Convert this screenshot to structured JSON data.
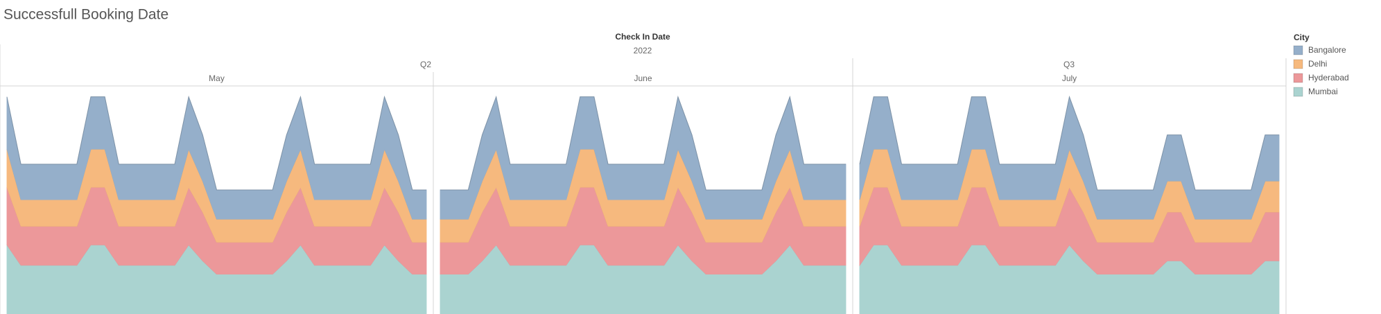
{
  "title": "Successfull Booking Date",
  "header": {
    "field": "Check In Date",
    "year": "2022",
    "quarters": [
      "Q2",
      "Q3"
    ]
  },
  "legend_title": "City",
  "chart_data": [
    {
      "type": "area",
      "stacked": true,
      "panel": "May",
      "series": [
        {
          "name": "Bangalore",
          "color": "#95afca",
          "values": [
            59,
            40,
            40,
            40,
            40,
            40,
            59,
            59,
            40,
            40,
            40,
            40,
            40,
            59,
            52,
            33,
            33,
            33,
            33,
            33,
            52,
            59,
            40,
            40,
            40,
            40,
            40,
            59,
            52,
            33,
            33
          ]
        },
        {
          "name": "Delhi",
          "color": "#f6b97e",
          "values": [
            43,
            30,
            30,
            30,
            30,
            30,
            43,
            43,
            30,
            30,
            30,
            30,
            30,
            43,
            35,
            26,
            26,
            26,
            26,
            26,
            35,
            43,
            30,
            30,
            30,
            30,
            30,
            43,
            35,
            26,
            26
          ]
        },
        {
          "name": "Hyderabad",
          "color": "#ec989a",
          "values": [
            65,
            44,
            44,
            44,
            44,
            44,
            65,
            65,
            44,
            44,
            44,
            44,
            44,
            65,
            55,
            36,
            36,
            36,
            36,
            36,
            55,
            65,
            44,
            44,
            44,
            44,
            44,
            65,
            55,
            36,
            36
          ]
        },
        {
          "name": "Mumbai",
          "color": "#aad3d0",
          "values": [
            78,
            55,
            55,
            55,
            55,
            55,
            78,
            78,
            55,
            55,
            55,
            55,
            55,
            78,
            60,
            45,
            45,
            45,
            45,
            45,
            60,
            78,
            55,
            55,
            55,
            55,
            55,
            78,
            60,
            45,
            45
          ]
        }
      ]
    },
    {
      "type": "area",
      "stacked": true,
      "panel": "June",
      "series": [
        {
          "name": "Bangalore",
          "color": "#95afca",
          "values": [
            33,
            33,
            33,
            52,
            59,
            40,
            40,
            40,
            40,
            40,
            59,
            59,
            40,
            40,
            40,
            40,
            40,
            59,
            52,
            33,
            33,
            33,
            33,
            33,
            52,
            59,
            40,
            40,
            40,
            40
          ]
        },
        {
          "name": "Delhi",
          "color": "#f6b97e",
          "values": [
            26,
            26,
            26,
            35,
            43,
            30,
            30,
            30,
            30,
            30,
            43,
            43,
            30,
            30,
            30,
            30,
            30,
            43,
            35,
            26,
            26,
            26,
            26,
            26,
            35,
            43,
            30,
            30,
            30,
            30
          ]
        },
        {
          "name": "Hyderabad",
          "color": "#ec989a",
          "values": [
            36,
            36,
            36,
            55,
            65,
            44,
            44,
            44,
            44,
            44,
            65,
            65,
            44,
            44,
            44,
            44,
            44,
            65,
            55,
            36,
            36,
            36,
            36,
            36,
            55,
            65,
            44,
            44,
            44,
            44
          ]
        },
        {
          "name": "Mumbai",
          "color": "#aad3d0",
          "values": [
            45,
            45,
            45,
            60,
            78,
            55,
            55,
            55,
            55,
            55,
            78,
            78,
            55,
            55,
            55,
            55,
            55,
            78,
            60,
            45,
            45,
            45,
            45,
            45,
            60,
            78,
            55,
            55,
            55,
            55
          ]
        }
      ]
    },
    {
      "type": "area",
      "stacked": true,
      "panel": "July",
      "series": [
        {
          "name": "Bangalore",
          "color": "#95afca",
          "values": [
            40,
            59,
            59,
            40,
            40,
            40,
            40,
            40,
            59,
            59,
            40,
            40,
            40,
            40,
            40,
            59,
            52,
            33,
            33,
            33,
            33,
            33,
            52,
            52,
            33,
            33,
            33,
            33,
            33,
            52,
            52
          ]
        },
        {
          "name": "Delhi",
          "color": "#f6b97e",
          "values": [
            30,
            43,
            43,
            30,
            30,
            30,
            30,
            30,
            43,
            43,
            30,
            30,
            30,
            30,
            30,
            43,
            35,
            26,
            26,
            26,
            26,
            26,
            35,
            35,
            26,
            26,
            26,
            26,
            26,
            35,
            35
          ]
        },
        {
          "name": "Hyderabad",
          "color": "#ec989a",
          "values": [
            44,
            65,
            65,
            44,
            44,
            44,
            44,
            44,
            65,
            65,
            44,
            44,
            44,
            44,
            44,
            65,
            55,
            36,
            36,
            36,
            36,
            36,
            55,
            55,
            36,
            36,
            36,
            36,
            36,
            55,
            55
          ]
        },
        {
          "name": "Mumbai",
          "color": "#aad3d0",
          "values": [
            55,
            78,
            78,
            55,
            55,
            55,
            55,
            55,
            78,
            78,
            55,
            55,
            55,
            55,
            55,
            78,
            60,
            45,
            45,
            45,
            45,
            45,
            60,
            60,
            45,
            45,
            45,
            45,
            45,
            60,
            60
          ]
        }
      ]
    }
  ]
}
